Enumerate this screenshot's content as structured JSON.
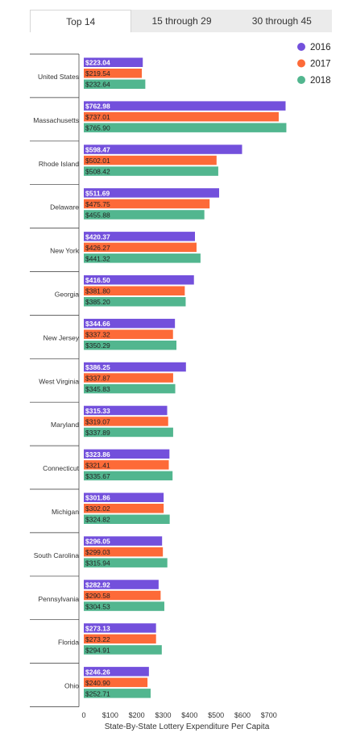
{
  "tabs": [
    {
      "label": "Top 14",
      "active": true
    },
    {
      "label": "15 through 29",
      "active": false
    },
    {
      "label": "30 through 45",
      "active": false
    }
  ],
  "chart_data": {
    "type": "bar",
    "orientation": "horizontal",
    "title": "",
    "xlabel": "State-By-State Lottery Expenditure Per Capita",
    "ylabel": "",
    "xlim": [
      0,
      800
    ],
    "x_ticks": [
      0,
      100,
      200,
      300,
      400,
      500,
      600,
      700
    ],
    "x_tick_labels": [
      "0",
      "$100",
      "$200",
      "$300",
      "$400",
      "$500",
      "$600",
      "$700"
    ],
    "legend_position": "top-right",
    "grid": false,
    "categories": [
      "United States",
      "Massachusetts",
      "Rhode Island",
      "Delaware",
      "New York",
      "Georgia",
      "New Jersey",
      "West Virginia",
      "Maryland",
      "Connecticut",
      "Michigan",
      "South Carolina",
      "Pennsylvania",
      "Florida",
      "Ohio"
    ],
    "series": [
      {
        "name": "2016",
        "color": "#7350dc",
        "values": [
          223.04,
          762.98,
          598.47,
          511.69,
          420.37,
          416.5,
          344.66,
          386.25,
          315.33,
          323.86,
          301.86,
          296.05,
          282.92,
          273.13,
          246.26
        ],
        "labels": [
          "$223.04",
          "$762.98",
          "$598.47",
          "$511.69",
          "$420.37",
          "$416.50",
          "$344.66",
          "$386.25",
          "$315.33",
          "$323.86",
          "$301.86",
          "$296.05",
          "$282.92",
          "$273.13",
          "$246.26"
        ]
      },
      {
        "name": "2017",
        "color": "#fd6a38",
        "values": [
          219.54,
          737.01,
          502.01,
          475.75,
          426.27,
          381.8,
          337.32,
          337.87,
          319.07,
          321.41,
          302.02,
          299.03,
          290.58,
          273.22,
          240.9
        ],
        "labels": [
          "$219.54",
          "$737.01",
          "$502.01",
          "$475.75",
          "$426.27",
          "$381.80",
          "$337.32",
          "$337.87",
          "$319.07",
          "$321.41",
          "$302.02",
          "$299.03",
          "$290.58",
          "$273.22",
          "$240.90"
        ]
      },
      {
        "name": "2018",
        "color": "#52b68f",
        "values": [
          232.64,
          765.9,
          508.42,
          455.88,
          441.32,
          385.2,
          350.29,
          345.83,
          337.89,
          335.67,
          324.82,
          315.94,
          304.53,
          294.91,
          252.71
        ],
        "labels": [
          "$232.64",
          "$765.90",
          "$508.42",
          "$455.88",
          "$441.32",
          "$385.20",
          "$350.29",
          "$345.83",
          "$337.89",
          "$335.67",
          "$324.82",
          "$315.94",
          "$304.53",
          "$294.91",
          "$252.71"
        ]
      }
    ]
  }
}
